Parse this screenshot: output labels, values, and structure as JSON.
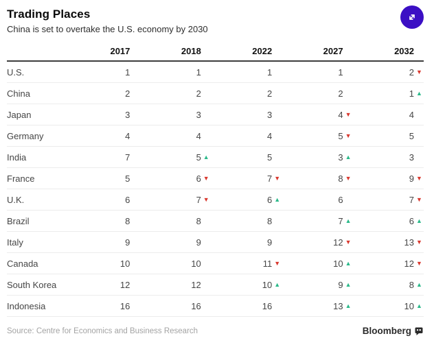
{
  "chart_data": {
    "type": "table",
    "title": "Trading Places",
    "subtitle": "China is set to overtake the U.S. economy by 2030",
    "columns": [
      "2017",
      "2018",
      "2022",
      "2027",
      "2032"
    ],
    "rows": [
      {
        "label": "U.S.",
        "values": [
          1,
          1,
          1,
          1,
          2
        ],
        "direction": [
          "",
          "",
          "",
          "",
          "down"
        ]
      },
      {
        "label": "China",
        "values": [
          2,
          2,
          2,
          2,
          1
        ],
        "direction": [
          "",
          "",
          "",
          "",
          "up"
        ]
      },
      {
        "label": "Japan",
        "values": [
          3,
          3,
          3,
          4,
          4
        ],
        "direction": [
          "",
          "",
          "",
          "down",
          ""
        ]
      },
      {
        "label": "Germany",
        "values": [
          4,
          4,
          4,
          5,
          5
        ],
        "direction": [
          "",
          "",
          "",
          "down",
          ""
        ]
      },
      {
        "label": "India",
        "values": [
          7,
          5,
          5,
          3,
          3
        ],
        "direction": [
          "",
          "up",
          "",
          "up",
          ""
        ]
      },
      {
        "label": "France",
        "values": [
          5,
          6,
          7,
          8,
          9
        ],
        "direction": [
          "",
          "down",
          "down",
          "down",
          "down"
        ]
      },
      {
        "label": "U.K.",
        "values": [
          6,
          7,
          6,
          6,
          7
        ],
        "direction": [
          "",
          "down",
          "up",
          "",
          "down"
        ]
      },
      {
        "label": "Brazil",
        "values": [
          8,
          8,
          8,
          7,
          6
        ],
        "direction": [
          "",
          "",
          "",
          "up",
          "up"
        ]
      },
      {
        "label": "Italy",
        "values": [
          9,
          9,
          9,
          12,
          13
        ],
        "direction": [
          "",
          "",
          "",
          "down",
          "down"
        ]
      },
      {
        "label": "Canada",
        "values": [
          10,
          10,
          11,
          10,
          12
        ],
        "direction": [
          "",
          "",
          "down",
          "up",
          "down"
        ]
      },
      {
        "label": "South Korea",
        "values": [
          12,
          12,
          10,
          9,
          8
        ],
        "direction": [
          "",
          "",
          "up",
          "up",
          "up"
        ]
      },
      {
        "label": "Indonesia",
        "values": [
          16,
          16,
          16,
          13,
          10
        ],
        "direction": [
          "",
          "",
          "",
          "up",
          "up"
        ]
      }
    ],
    "source": "Source: Centre for Economics and Business Research",
    "brand": "Bloomberg"
  },
  "icons": {
    "up_arrow": "▲",
    "down_arrow": "▼"
  },
  "colors": {
    "up_arrow": "#2bb98a",
    "down_arrow": "#d9382e",
    "accent_button": "#3b0fc4"
  }
}
